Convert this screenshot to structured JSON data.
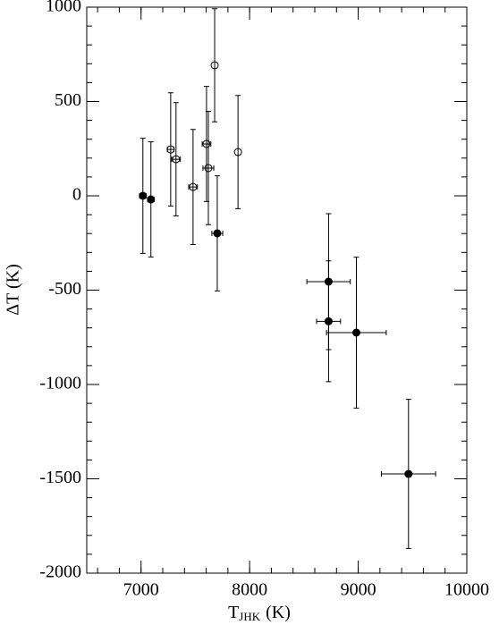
{
  "chart_data": {
    "type": "scatter",
    "xlabel": "T",
    "xlabel_sub": "JHK",
    "xlabel_unit": "(K)",
    "ylabel": "ΔT (K)",
    "xlim": [
      6500,
      10000
    ],
    "xticks": [
      7000,
      8000,
      9000,
      10000
    ],
    "xminor": 200,
    "ylim": [
      -2000,
      1000
    ],
    "yticks": [
      -2000,
      -1500,
      -1000,
      -500,
      0,
      500,
      1000
    ],
    "yminor": 100,
    "series": [
      {
        "marker": "filled",
        "color": "#000000",
        "x": [
          7017,
          7091,
          7702,
          8727,
          8727,
          8983,
          9463
        ],
        "values": [
          0,
          -19,
          -199,
          -455,
          -665,
          -725,
          -1474
        ],
        "xerr": [
          30,
          30,
          50,
          200,
          110,
          275,
          250
        ],
        "yerr": [
          305,
          305,
          305,
          360,
          320,
          400,
          395
        ]
      },
      {
        "marker": "open",
        "color": "#000000",
        "x": [
          7678,
          7273,
          7322,
          7479,
          7603,
          7620,
          7893
        ],
        "values": [
          692,
          246,
          194,
          47,
          275,
          147,
          232
        ],
        "xerr": [
          0,
          30,
          40,
          40,
          40,
          50,
          0
        ],
        "yerr": [
          300,
          300,
          300,
          305,
          305,
          300,
          300
        ]
      }
    ]
  }
}
